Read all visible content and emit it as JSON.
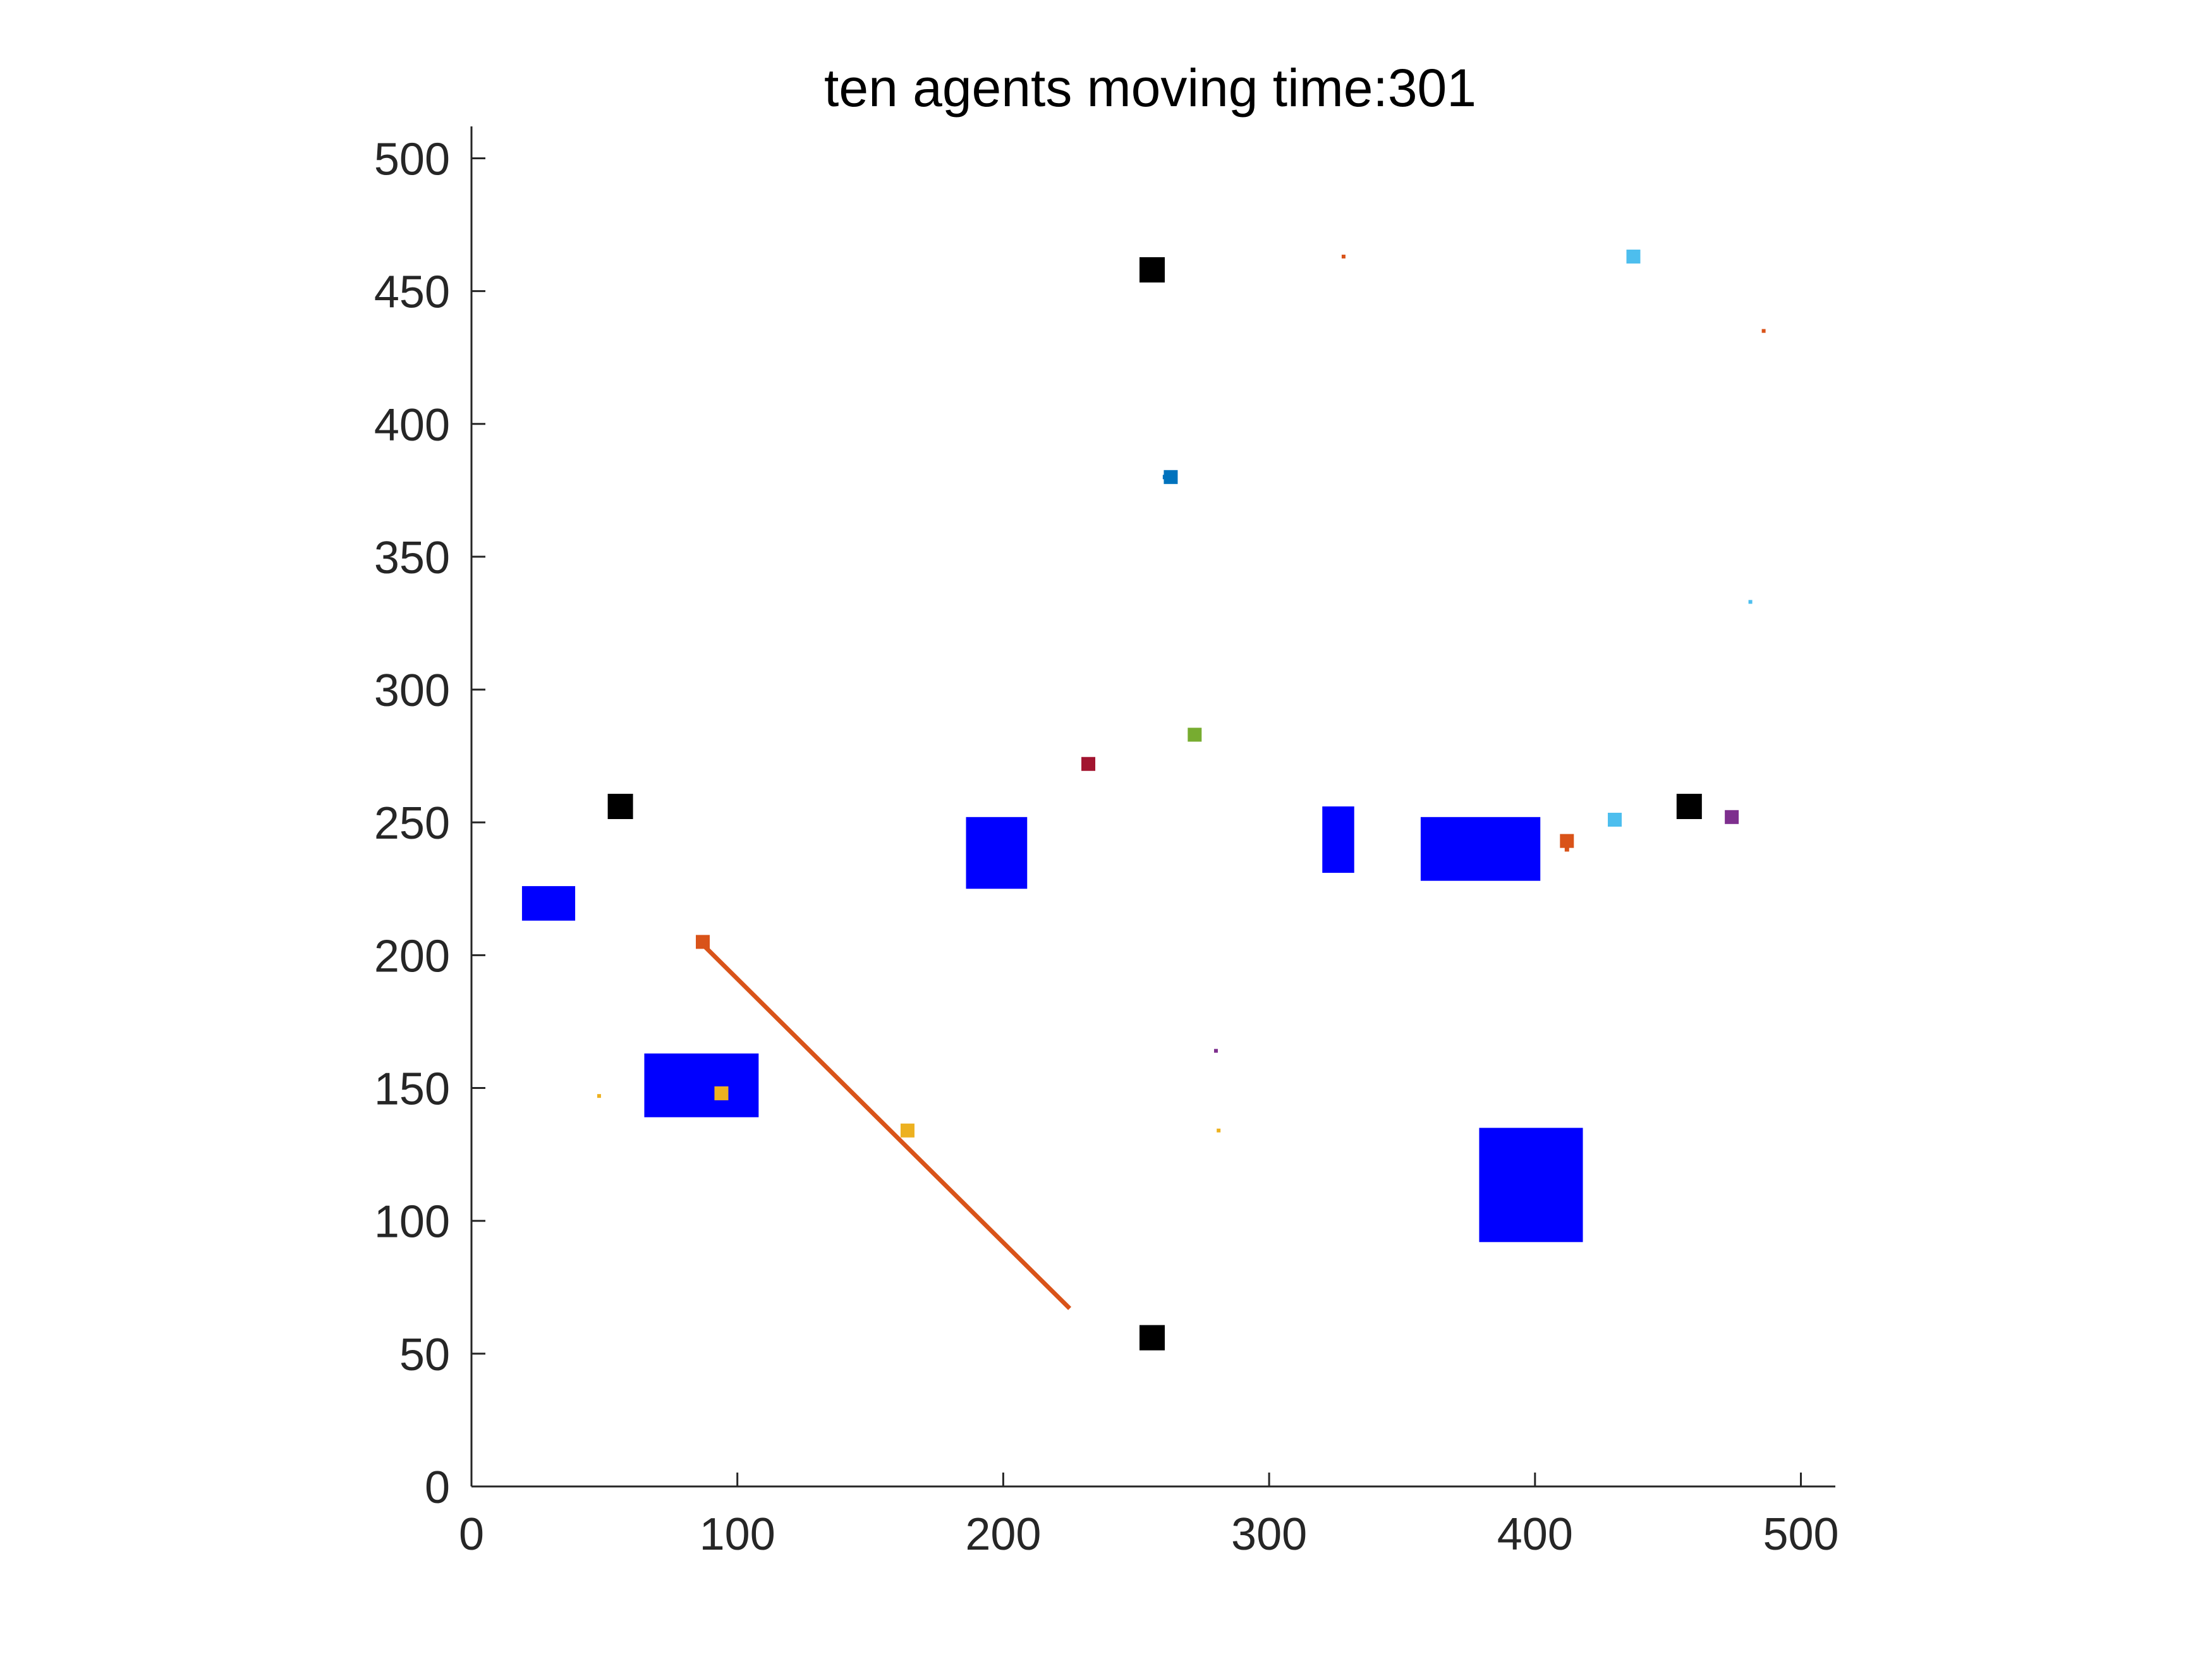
{
  "chart_data": {
    "type": "scatter",
    "title": "ten agents moving time:301",
    "xlabel": "",
    "ylabel": "",
    "xlim": [
      0,
      512
    ],
    "ylim": [
      0,
      512
    ],
    "xticks": [
      0,
      100,
      200,
      300,
      400,
      500
    ],
    "yticks": [
      0,
      50,
      100,
      150,
      200,
      250,
      300,
      350,
      400,
      450,
      500
    ],
    "grid": false,
    "legend": "none",
    "obstacles": [
      {
        "x0": 19,
        "x1": 39,
        "y0": 213,
        "y1": 226,
        "color": "#0000ff"
      },
      {
        "x0": 186,
        "x1": 209,
        "y0": 225,
        "y1": 252,
        "color": "#0000ff"
      },
      {
        "x0": 65,
        "x1": 108,
        "y0": 139,
        "y1": 163,
        "color": "#0000ff"
      },
      {
        "x0": 320,
        "x1": 332,
        "y0": 231,
        "y1": 256,
        "color": "#0000ff"
      },
      {
        "x0": 357,
        "x1": 402,
        "y0": 228,
        "y1": 252,
        "color": "#0000ff"
      },
      {
        "x0": 379,
        "x1": 418,
        "y0": 92,
        "y1": 135,
        "color": "#0000ff"
      }
    ],
    "base_stations": [
      {
        "x": 256,
        "y": 458,
        "color": "#000000"
      },
      {
        "x": 56,
        "y": 256,
        "color": "#000000"
      },
      {
        "x": 458,
        "y": 256,
        "color": "#000000"
      },
      {
        "x": 256,
        "y": 56,
        "color": "#000000"
      }
    ],
    "agents": [
      {
        "x": 437,
        "y": 463,
        "color": "#4dbeee"
      },
      {
        "x": 263,
        "y": 380,
        "color": "#0072bd"
      },
      {
        "x": 272,
        "y": 283,
        "color": "#77ac30"
      },
      {
        "x": 232,
        "y": 272,
        "color": "#a2142f"
      },
      {
        "x": 412,
        "y": 243,
        "color": "#d95319"
      },
      {
        "x": 430,
        "y": 251,
        "color": "#4dbeee"
      },
      {
        "x": 474,
        "y": 252,
        "color": "#7e2f8e"
      },
      {
        "x": 87,
        "y": 205,
        "color": "#d95319"
      },
      {
        "x": 94,
        "y": 148,
        "color": "#edb120"
      },
      {
        "x": 164,
        "y": 134,
        "color": "#edb120"
      }
    ],
    "targets": [
      {
        "x": 328,
        "y": 463,
        "color": "#d95319"
      },
      {
        "x": 486,
        "y": 435,
        "color": "#d95319"
      },
      {
        "x": 481,
        "y": 333,
        "color": "#4dbeee"
      },
      {
        "x": 280,
        "y": 164,
        "color": "#7e2f8e"
      },
      {
        "x": 281,
        "y": 134,
        "color": "#edb120"
      },
      {
        "x": 48,
        "y": 147,
        "color": "#edb120"
      }
    ],
    "trajectories": [
      {
        "color": "#d95319",
        "points": [
          [
            88,
            203
          ],
          [
            225,
            67
          ]
        ]
      },
      {
        "color": "#0072bd",
        "points": [
          [
            260,
            380
          ],
          [
            263,
            380
          ]
        ]
      },
      {
        "color": "#d95319",
        "points": [
          [
            412,
            243
          ],
          [
            412,
            239
          ]
        ]
      }
    ]
  }
}
